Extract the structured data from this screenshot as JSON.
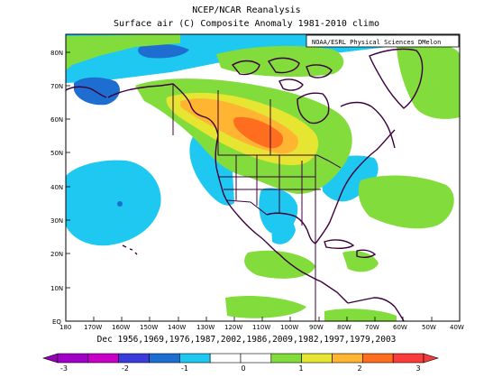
{
  "header": {
    "title": "NCEP/NCAR Reanalysis",
    "subtitle": "Surface air (C) Composite Anomaly 1981-2010 climo",
    "credit": "NOAA/ESRL Physical Sciences DMelon"
  },
  "footer": {
    "dates_label": "Dec 1956,1969,1976,1987,2002,1986,2009,1982,1997,1979,2003"
  },
  "map": {
    "lat_labels": [
      "80N",
      "70N",
      "60N",
      "50N",
      "40N",
      "30N",
      "20N",
      "10N",
      "EQ"
    ],
    "lon_labels": [
      "180",
      "170W",
      "160W",
      "150W",
      "140W",
      "130W",
      "120W",
      "110W",
      "100W",
      "90W",
      "80W",
      "70W",
      "60W",
      "50W",
      "40W"
    ],
    "lat_range": [
      0,
      85
    ],
    "lon_range": [
      -180,
      -40
    ]
  },
  "colorbar": {
    "labels": [
      "-3",
      "-2",
      "-1",
      "0",
      "1",
      "2",
      "3"
    ],
    "colors": [
      "#a000c8",
      "#c800c8",
      "#3c3cdc",
      "#1e6ed2",
      "#1ec8f0",
      "#ffffff",
      "#ffffff",
      "#82dc3c",
      "#e6e632",
      "#ffb432",
      "#ff6e1e",
      "#fa3c3c"
    ],
    "left_arrow": "#9600b4",
    "right_arrow": "#f03c3c"
  },
  "colors": {
    "land_outline": "#3c003c",
    "cool_blue": "#1ec8f0",
    "deep_blue": "#1e6ed2",
    "green": "#82dc3c",
    "yellow": "#e6e632",
    "orange": "#ffb432",
    "dark_orange": "#ff6e1e"
  }
}
